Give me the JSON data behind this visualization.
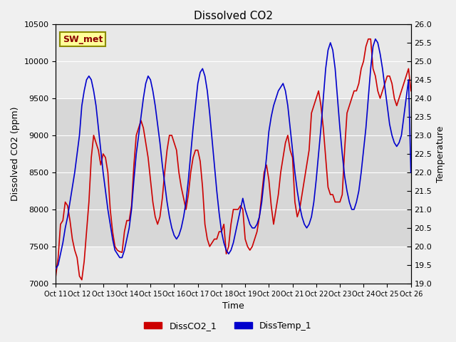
{
  "title": "Dissolved CO2",
  "xlabel": "Time",
  "ylabel_left": "Dissolved CO2 (ppm)",
  "ylabel_right": "Temperature",
  "ylim_left": [
    7000,
    10500
  ],
  "ylim_right": [
    19.0,
    26.0
  ],
  "yticks_left": [
    7000,
    7500,
    8000,
    8500,
    9000,
    9500,
    10000,
    10500
  ],
  "yticks_right": [
    19.0,
    19.5,
    20.0,
    20.5,
    21.0,
    21.5,
    22.0,
    22.5,
    23.0,
    23.5,
    24.0,
    24.5,
    25.0,
    25.5,
    26.0
  ],
  "xtick_labels": [
    "Oct 11",
    "Oct 12",
    "Oct 13",
    "Oct 14",
    "Oct 15",
    "Oct 16",
    "Oct 17",
    "Oct 18",
    "Oct 19",
    "Oct 20",
    "Oct 21",
    "Oct 22",
    "Oct 23",
    "Oct 24",
    "Oct 25",
    "Oct 26"
  ],
  "legend_labels": [
    "DissCO2_1",
    "DissTemp_1"
  ],
  "legend_colors": [
    "#cc0000",
    "#0000cc"
  ],
  "bg_shade_ylim": [
    7500,
    9500
  ],
  "sw_met_label": "SW_met",
  "color_co2": "#cc0000",
  "color_temp": "#0000cc",
  "x_co2": [
    11,
    11.1,
    11.2,
    11.3,
    11.4,
    11.5,
    11.6,
    11.7,
    11.8,
    11.9,
    12.0,
    12.1,
    12.2,
    12.3,
    12.4,
    12.5,
    12.6,
    12.7,
    12.8,
    12.9,
    13.0,
    13.1,
    13.2,
    13.3,
    13.4,
    13.5,
    13.6,
    13.7,
    13.8,
    13.9,
    14.0,
    14.1,
    14.2,
    14.3,
    14.4,
    14.5,
    14.6,
    14.7,
    14.8,
    14.9,
    15.0,
    15.1,
    15.2,
    15.3,
    15.4,
    15.5,
    15.6,
    15.7,
    15.8,
    15.9,
    16.0,
    16.1,
    16.2,
    16.3,
    16.4,
    16.5,
    16.6,
    16.7,
    16.8,
    16.9,
    17.0,
    17.1,
    17.2,
    17.3,
    17.4,
    17.5,
    17.6,
    17.7,
    17.8,
    17.9,
    18.0,
    18.1,
    18.2,
    18.3,
    18.4,
    18.5,
    18.6,
    18.7,
    18.8,
    18.9,
    19.0,
    19.1,
    19.2,
    19.3,
    19.4,
    19.5,
    19.6,
    19.7,
    19.8,
    19.9,
    20.0,
    20.1,
    20.2,
    20.3,
    20.4,
    20.5,
    20.6,
    20.7,
    20.8,
    20.9,
    21.0,
    21.1,
    21.2,
    21.3,
    21.4,
    21.5,
    21.6,
    21.7,
    21.8,
    21.9,
    22.0,
    22.1,
    22.2,
    22.3,
    22.4,
    22.5,
    22.6,
    22.7,
    22.8,
    22.9,
    23.0,
    23.1,
    23.2,
    23.3,
    23.4,
    23.5,
    23.6,
    23.7,
    23.8,
    23.9,
    24.0,
    24.1,
    24.2,
    24.3,
    24.4,
    24.5,
    24.6,
    24.7,
    24.8,
    24.9,
    25.0,
    25.1,
    25.2,
    25.3,
    25.4,
    25.5,
    25.6,
    25.7,
    25.8,
    25.9,
    26.0
  ],
  "y_co2": [
    7100,
    7350,
    7800,
    7850,
    8100,
    8050,
    7850,
    7600,
    7450,
    7350,
    7100,
    7050,
    7300,
    7700,
    8100,
    8700,
    9000,
    8900,
    8800,
    8600,
    8750,
    8700,
    8500,
    8000,
    7700,
    7500,
    7450,
    7430,
    7420,
    7700,
    7850,
    7850,
    8050,
    8600,
    9000,
    9100,
    9200,
    9100,
    8900,
    8700,
    8400,
    8100,
    7900,
    7800,
    7900,
    8150,
    8500,
    8800,
    9000,
    9000,
    8900,
    8800,
    8500,
    8300,
    8150,
    8000,
    8200,
    8500,
    8700,
    8800,
    8800,
    8650,
    8300,
    7800,
    7600,
    7500,
    7550,
    7600,
    7600,
    7700,
    7700,
    7800,
    7400,
    7500,
    7800,
    8000,
    8000,
    8000,
    8050,
    8000,
    7600,
    7500,
    7450,
    7500,
    7600,
    7700,
    7900,
    8200,
    8500,
    8600,
    8400,
    8050,
    7800,
    8000,
    8200,
    8500,
    8700,
    8900,
    9000,
    8800,
    8700,
    8100,
    7900,
    8000,
    8200,
    8400,
    8600,
    8800,
    9300,
    9400,
    9500,
    9600,
    9400,
    9100,
    8700,
    8300,
    8200,
    8200,
    8100,
    8100,
    8100,
    8200,
    8800,
    9300,
    9400,
    9500,
    9600,
    9600,
    9700,
    9900,
    10000,
    10200,
    10300,
    10300,
    9900,
    9800,
    9600,
    9500,
    9600,
    9700,
    9800,
    9800,
    9700,
    9500,
    9400,
    9500,
    9600,
    9700,
    9800,
    9900,
    9600
  ],
  "x_temp": [
    11,
    11.1,
    11.2,
    11.3,
    11.4,
    11.5,
    11.6,
    11.7,
    11.8,
    11.9,
    12.0,
    12.1,
    12.2,
    12.3,
    12.4,
    12.5,
    12.6,
    12.7,
    12.8,
    12.9,
    13.0,
    13.1,
    13.2,
    13.3,
    13.4,
    13.5,
    13.6,
    13.7,
    13.8,
    13.9,
    14.0,
    14.1,
    14.2,
    14.3,
    14.4,
    14.5,
    14.6,
    14.7,
    14.8,
    14.9,
    15.0,
    15.1,
    15.2,
    15.3,
    15.4,
    15.5,
    15.6,
    15.7,
    15.8,
    15.9,
    16.0,
    16.1,
    16.2,
    16.3,
    16.4,
    16.5,
    16.6,
    16.7,
    16.8,
    16.9,
    17.0,
    17.1,
    17.2,
    17.3,
    17.4,
    17.5,
    17.6,
    17.7,
    17.8,
    17.9,
    18.0,
    18.1,
    18.2,
    18.3,
    18.4,
    18.5,
    18.6,
    18.7,
    18.8,
    18.9,
    19.0,
    19.1,
    19.2,
    19.3,
    19.4,
    19.5,
    19.6,
    19.7,
    19.8,
    19.9,
    20.0,
    20.1,
    20.2,
    20.3,
    20.4,
    20.5,
    20.6,
    20.7,
    20.8,
    20.9,
    21.0,
    21.1,
    21.2,
    21.3,
    21.4,
    21.5,
    21.6,
    21.7,
    21.8,
    21.9,
    22.0,
    22.1,
    22.2,
    22.3,
    22.4,
    22.5,
    22.6,
    22.7,
    22.8,
    22.9,
    23.0,
    23.1,
    23.2,
    23.3,
    23.4,
    23.5,
    23.6,
    23.7,
    23.8,
    23.9,
    24.0,
    24.1,
    24.2,
    24.3,
    24.4,
    24.5,
    24.6,
    24.7,
    24.8,
    24.9,
    25.0,
    25.1,
    25.2,
    25.3,
    25.4,
    25.5,
    25.6,
    25.7,
    25.8,
    25.9,
    26.0
  ],
  "y_temp": [
    19.4,
    19.5,
    19.8,
    20.1,
    20.5,
    20.8,
    21.2,
    21.6,
    22.0,
    22.5,
    23.0,
    23.8,
    24.2,
    24.5,
    24.6,
    24.5,
    24.2,
    23.8,
    23.2,
    22.6,
    22.0,
    21.5,
    21.0,
    20.6,
    20.2,
    19.9,
    19.8,
    19.7,
    19.7,
    19.9,
    20.2,
    20.5,
    21.0,
    21.8,
    22.5,
    23.0,
    23.5,
    24.0,
    24.4,
    24.6,
    24.5,
    24.2,
    23.8,
    23.3,
    22.8,
    22.2,
    21.7,
    21.2,
    20.8,
    20.5,
    20.3,
    20.2,
    20.3,
    20.5,
    20.8,
    21.2,
    21.8,
    22.5,
    23.2,
    23.8,
    24.4,
    24.7,
    24.8,
    24.6,
    24.2,
    23.6,
    22.9,
    22.2,
    21.5,
    20.9,
    20.4,
    20.1,
    19.9,
    19.8,
    19.9,
    20.1,
    20.4,
    20.7,
    21.0,
    21.3,
    21.0,
    20.8,
    20.6,
    20.5,
    20.5,
    20.6,
    20.8,
    21.2,
    21.8,
    22.4,
    23.1,
    23.5,
    23.8,
    24.0,
    24.2,
    24.3,
    24.4,
    24.2,
    23.8,
    23.2,
    22.6,
    22.0,
    21.5,
    21.1,
    20.8,
    20.6,
    20.5,
    20.6,
    20.8,
    21.2,
    21.8,
    22.5,
    23.2,
    24.0,
    24.8,
    25.3,
    25.5,
    25.3,
    24.8,
    24.0,
    23.2,
    22.5,
    21.9,
    21.5,
    21.2,
    21.0,
    21.0,
    21.2,
    21.5,
    22.0,
    22.6,
    23.2,
    24.0,
    24.8,
    25.4,
    25.6,
    25.5,
    25.2,
    24.8,
    24.3,
    23.8,
    23.3,
    23.0,
    22.8,
    22.7,
    22.8,
    23.0,
    23.5,
    24.0,
    24.5,
    22.0
  ]
}
